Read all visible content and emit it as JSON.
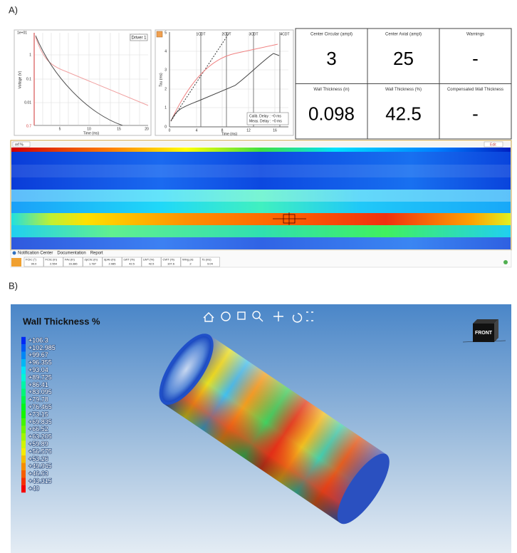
{
  "panel_a": {
    "label": "A)",
    "decay_plot": {
      "legend": "Driver 1",
      "y_ticks": [
        "1e+01",
        "1",
        "0.1",
        "0.01"
      ],
      "y_min_label": "0.7",
      "x_ticks": [
        "5",
        "10",
        "15",
        "20"
      ],
      "x_label": "Time (ms)",
      "y_label": "Voltage (V)"
    },
    "tau_plot": {
      "y_ticks": [
        "0",
        "1",
        "2",
        "3",
        "4",
        "5"
      ],
      "x_ticks": [
        "0",
        "4",
        "8",
        "12",
        "16"
      ],
      "markers": [
        "1CDT",
        "2CDT",
        "3CDT",
        "4CDT"
      ],
      "x_label": "Time (ms)",
      "y_label": "Tau (ms)",
      "notes": [
        "Calib. Delay : ~0 ms",
        "Meas. Delay : ~0 ms"
      ]
    },
    "results": {
      "rows": [
        [
          {
            "header": "Center Circular (ampl)",
            "value": "3"
          },
          {
            "header": "Center Axial (ampl)",
            "value": "25"
          },
          {
            "header": "Warnings",
            "value": "-"
          }
        ],
        [
          {
            "header": "Wall Thickness (in)",
            "value": "0.098"
          },
          {
            "header": "Wall Thickness (%)",
            "value": "42.5"
          },
          {
            "header": "Compensated Wall Thickness",
            "value": "-"
          }
        ]
      ]
    },
    "heatmap": {
      "selector": "ref %",
      "edit": "Edit"
    },
    "footer": {
      "tabs": [
        "Notification Center",
        "Documentation",
        "Report"
      ],
      "fields": [
        {
          "label": "FCirc (°)",
          "value": "90.0"
        },
        {
          "label": "FCirc (in)",
          "value": "2.554"
        },
        {
          "label": "FAx (in)",
          "value": "16.386"
        },
        {
          "label": "dpCirc (in)",
          "value": "1.787"
        },
        {
          "label": "dpAx (in)",
          "value": "2.085"
        },
        {
          "label": "LWT (%)",
          "value": "42.5"
        },
        {
          "label": "LWT (%)",
          "value": "42.5"
        },
        {
          "label": "CWT (%)",
          "value": "107.6"
        },
        {
          "label": "Wing pts",
          "value": "2"
        },
        {
          "label": "Ts (ms)",
          "value": "9.04"
        }
      ]
    }
  },
  "panel_b": {
    "label": "B)",
    "title": "Wall Thickness %",
    "scale": [
      "+106.3",
      "+102.985",
      "+99.67",
      "+96.355",
      "+93.04",
      "+89.725",
      "+86.41",
      "+83.095",
      "+79.78",
      "+76.465",
      "+73.15",
      "+69.835",
      "+66.52",
      "+63.205",
      "+59.89",
      "+56.575",
      "+53.26",
      "+49.945",
      "+46.63",
      "+43.315",
      "+40"
    ],
    "view_cube": "FRONT"
  }
}
